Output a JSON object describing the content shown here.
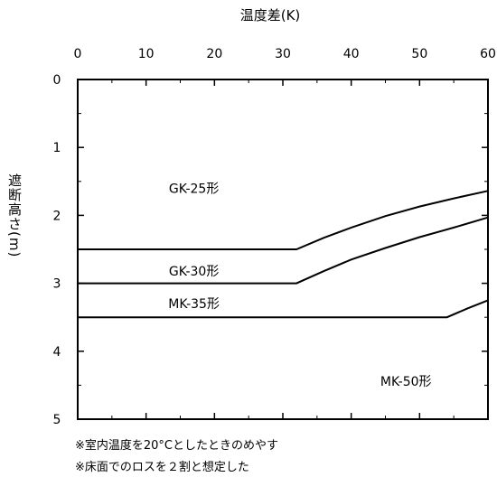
{
  "chart_data": {
    "type": "line",
    "xlabel": "温度差(K)",
    "ylabel": "遮断高さ(m)",
    "xlim": [
      0,
      60
    ],
    "ylim": [
      0,
      5
    ],
    "x_ticks": [
      "0",
      "10",
      "20",
      "30",
      "40",
      "50",
      "60"
    ],
    "y_ticks": [
      "0",
      "1",
      "2",
      "3",
      "4",
      "5"
    ],
    "x_axis_position": "top",
    "y_axis_inverted": true,
    "grid": false,
    "series": [
      {
        "points": [
          [
            0,
            2.5
          ],
          [
            32,
            2.5
          ],
          [
            36,
            2.33
          ],
          [
            40,
            2.18
          ],
          [
            45,
            2.01
          ],
          [
            50,
            1.87
          ],
          [
            55,
            1.75
          ],
          [
            60,
            1.64
          ]
        ]
      },
      {
        "points": [
          [
            0,
            3.0
          ],
          [
            32,
            3.0
          ],
          [
            36,
            2.82
          ],
          [
            40,
            2.65
          ],
          [
            45,
            2.48
          ],
          [
            50,
            2.32
          ],
          [
            55,
            2.18
          ],
          [
            60,
            2.03
          ]
        ]
      },
      {
        "points": [
          [
            0,
            3.5
          ],
          [
            54,
            3.5
          ],
          [
            57,
            3.37
          ],
          [
            60,
            3.25
          ]
        ]
      }
    ],
    "region_labels": [
      {
        "text": "GK-25形",
        "x": 17,
        "y": 1.6
      },
      {
        "text": "GK-30形",
        "x": 17,
        "y": 2.82
      },
      {
        "text": "MK-35形",
        "x": 17,
        "y": 3.3
      },
      {
        "text": "MK-50形",
        "x": 48,
        "y": 4.44
      }
    ]
  },
  "notes": [
    "※室内温度を20°Cとしたときのめやす",
    "※床面でのロスを２割と想定した"
  ]
}
